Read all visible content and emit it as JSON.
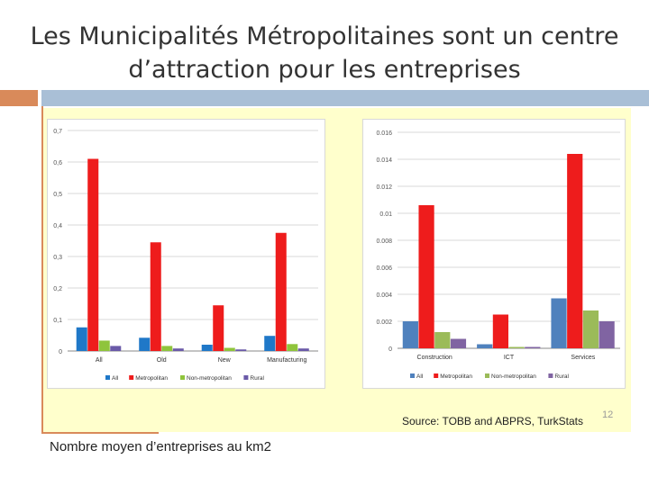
{
  "slide": {
    "title_line1": "Les Municipalités Métropolitaines sont un centre",
    "title_line2": "d’attraction pour les entreprises",
    "source": "Source: TOBB and ABPRS, TurkStats",
    "page_number": "12",
    "caption": "Nombre moyen d’entreprises au km2"
  },
  "colors": {
    "accent_orange": "#d98a5a",
    "accent_blue": "#a9bfd6",
    "panel": "#ffffcc"
  },
  "chart_data": [
    {
      "type": "bar",
      "categories": [
        "All",
        "Old",
        "New",
        "Manufacturing"
      ],
      "series": [
        {
          "name": "All",
          "color": "#1f78c8",
          "values": [
            0.075,
            0.042,
            0.02,
            0.048
          ]
        },
        {
          "name": "Metropolitan",
          "color": "#ee1c1c",
          "values": [
            0.61,
            0.345,
            0.145,
            0.375
          ]
        },
        {
          "name": "Non-metropolitan",
          "color": "#8fc43c",
          "values": [
            0.033,
            0.016,
            0.01,
            0.022
          ]
        },
        {
          "name": "Rural",
          "color": "#6a5aa8",
          "values": [
            0.016,
            0.008,
            0.005,
            0.008
          ]
        }
      ],
      "ylim": [
        0,
        0.7
      ],
      "yticks": [
        "0",
        "0,1",
        "0,2",
        "0,3",
        "0,4",
        "0,5",
        "0,6",
        "0,7"
      ],
      "grid": true,
      "legend": "bottom"
    },
    {
      "type": "bar",
      "categories": [
        "Construction",
        "ICT",
        "Services"
      ],
      "series": [
        {
          "name": "All",
          "color": "#4f81bd",
          "values": [
            0.002,
            0.0003,
            0.0037
          ]
        },
        {
          "name": "Metropolitan",
          "color": "#ee1c1c",
          "values": [
            0.0106,
            0.0025,
            0.0144
          ]
        },
        {
          "name": "Non-metropolitan",
          "color": "#9bbb59",
          "values": [
            0.0012,
            0.0001,
            0.0028
          ]
        },
        {
          "name": "Rural",
          "color": "#8064a2",
          "values": [
            0.0007,
            0.0001,
            0.002
          ]
        }
      ],
      "ylim": [
        0,
        0.016
      ],
      "yticks": [
        "0",
        "0.002",
        "0.004",
        "0.006",
        "0.008",
        "0.01",
        "0.012",
        "0.014",
        "0.016"
      ],
      "grid": true,
      "legend": "bottom"
    }
  ]
}
